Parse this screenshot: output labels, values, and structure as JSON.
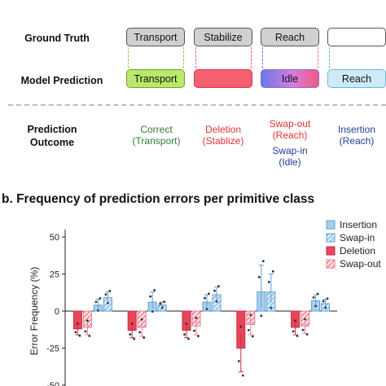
{
  "panel_a": {
    "ground_truth_label": "Ground Truth",
    "model_prediction_label": "Model Prediction",
    "outcome_label_line1": "Prediction",
    "outcome_label_line2": "Outcome",
    "ground_truth": [
      "Transport",
      "Stabilize",
      "Reach",
      ""
    ],
    "prediction": [
      "Transport",
      "",
      "Idle",
      "Reach"
    ],
    "outcomes": [
      {
        "line1": "Correct",
        "line2": "(Transport)",
        "color": "#2e7d32"
      },
      {
        "line1": "Deletion",
        "line2": "(Stablize)",
        "color": "#e0322f"
      },
      {
        "line1": "Swap-out",
        "line2": "(Reach)",
        "color": "#e0322f"
      },
      {
        "line1": "Insertion",
        "line2": "(Reach)",
        "color": "#1f3f9a"
      }
    ],
    "swap_in": {
      "line1": "Swap-in",
      "line2": "(Idle)",
      "color": "#1f3f9a"
    }
  },
  "panel_b": {
    "title": "b.  Frequency of prediction errors per primitive class"
  },
  "colors": {
    "insertion": "#5b9fd6",
    "swap_in": "#5b9fd6",
    "deletion": "#e8455a",
    "swap_out": "#e87d92",
    "gt_fill": "#cfd1d1",
    "transport_fill": "#b9e86a",
    "deletion_fill": "#f4606f",
    "reach_fill": "#cfeaf7"
  },
  "chart_data": {
    "type": "bar",
    "ylabel": "Error Frequency (%)",
    "ylim": [
      -50,
      55
    ],
    "yticks": [
      -50,
      -25,
      0,
      25,
      50
    ],
    "yticklabels": [
      "-50",
      "-25",
      "0",
      "25",
      "50"
    ],
    "group_count": 5,
    "series": [
      {
        "name": "Insertion",
        "values": [
          4,
          6,
          6,
          13,
          7
        ],
        "errors": [
          4,
          7,
          5,
          18,
          4
        ]
      },
      {
        "name": "Swap-in",
        "values": [
          9,
          4,
          11,
          13,
          5
        ],
        "errors": [
          4,
          2,
          5,
          12,
          3
        ]
      },
      {
        "name": "Deletion",
        "values": [
          -12,
          -13,
          -13,
          -25,
          -11
        ],
        "errors": [
          4,
          5,
          5,
          16,
          5
        ]
      },
      {
        "name": "Swap-out",
        "values": [
          -11,
          -11,
          -10,
          -9,
          -10
        ],
        "errors": [
          5,
          6,
          6,
          7,
          5
        ]
      }
    ],
    "legend_position": "top-right"
  }
}
